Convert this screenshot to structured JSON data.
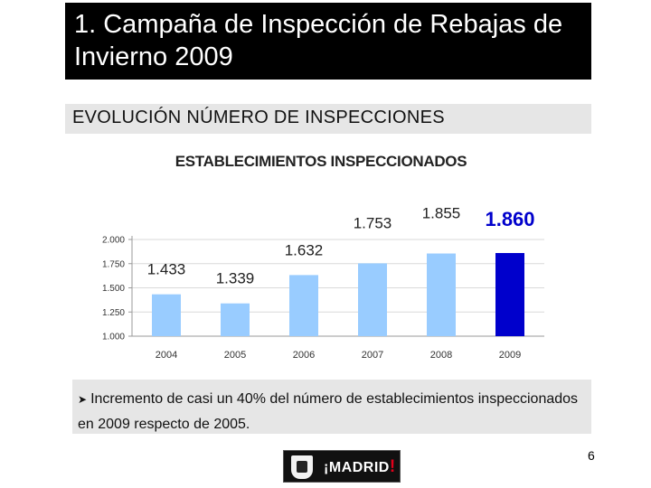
{
  "slide": {
    "title": "1. Campaña de Inspección de Rebajas de Invierno 2009",
    "subtitle": "EVOLUCIÓN NÚMERO DE INSPECCIONES",
    "note": "Incremento de casi un 40% del número de establecimientos inspeccionados en 2009 respecto de 2005.",
    "page_number": "6",
    "logo": {
      "open": "¡",
      "text": "MADRID",
      "close": "!"
    },
    "icons": [
      "arrowhead-bullet-icon",
      "madrid-shield-icon"
    ]
  },
  "chart_data": {
    "type": "bar",
    "title": "ESTABLECIMIENTOS INSPECCIONADOS",
    "categories": [
      "2004",
      "2005",
      "2006",
      "2007",
      "2008",
      "2009"
    ],
    "values": [
      1433,
      1339,
      1632,
      1753,
      1855,
      1860
    ],
    "data_labels": [
      "1.433",
      "1.339",
      "1.632",
      "1.753",
      "1.855",
      "1.860"
    ],
    "y_ticks": [
      1000,
      1250,
      1500,
      1750,
      2000
    ],
    "y_tick_labels": [
      "1.000",
      "1.250",
      "1.500",
      "1.750",
      "2.000"
    ],
    "ylim": [
      1000,
      2000
    ],
    "xlabel": "",
    "ylabel": "",
    "grid": true,
    "colors": {
      "bar": "#99ccff",
      "highlight_bar": "#0000cc",
      "highlight_label": "#0000cc"
    },
    "highlight_index": 5
  }
}
